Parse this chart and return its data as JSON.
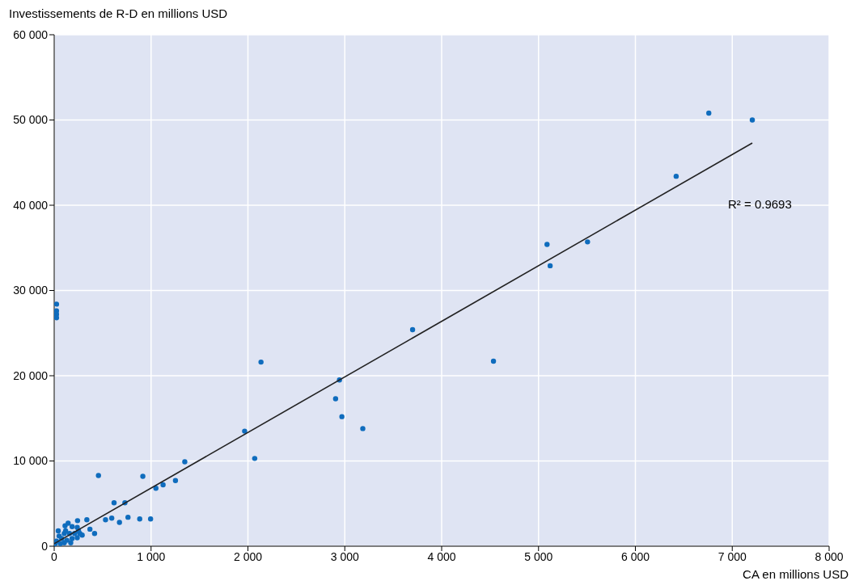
{
  "chart_data": {
    "type": "scatter",
    "ylabel": "Investissements de R-D en millions USD",
    "xlabel": "CA en millions USD",
    "annotations": [
      "R² = 0.9693"
    ],
    "xlim": [
      0,
      8000
    ],
    "ylim": [
      0,
      60000
    ],
    "xticks": [
      0,
      {
        "value": 1000,
        "label": "1 000"
      },
      {
        "value": 2000,
        "label": "2 000"
      },
      {
        "value": 3000,
        "label": "3 000"
      },
      {
        "value": 4000,
        "label": "4 000"
      },
      {
        "value": 5000,
        "label": "5 000"
      },
      {
        "value": 6000,
        "label": "6 000"
      },
      {
        "value": 7000,
        "label": "7 000"
      },
      {
        "value": 8000,
        "label": "8 000"
      }
    ],
    "yticks": [
      0,
      {
        "value": 10000,
        "label": "10 000"
      },
      {
        "value": 20000,
        "label": "20 000"
      },
      {
        "value": 30000,
        "label": "30 000"
      },
      {
        "value": 40000,
        "label": "40 000"
      },
      {
        "value": 50000,
        "label": "50 000"
      },
      {
        "value": 60000,
        "label": "60 000"
      }
    ],
    "grid": true,
    "legend": false,
    "marker": "circle",
    "series": [
      {
        "type": "scatter",
        "color": "#0f6cbd",
        "x": [
          7207,
          6758,
          6421,
          5506,
          5088,
          5120,
          4535,
          3700,
          2945,
          2905,
          2970,
          3186,
          2135,
          1966,
          2070,
          1348,
          457,
          915,
          1252,
          1124,
          1050,
          730,
          618,
          337,
          530,
          594,
          762,
          883,
          995,
          674,
          241,
          369,
          417,
          289,
          24,
          24,
          24,
          24,
          42,
          112,
          144,
          185,
          238,
          265,
          211,
          158,
          104,
          51,
          77,
          131,
          185,
          238,
          24,
          11,
          104,
          171,
          64,
          251,
          118
        ],
        "values": [
          50000,
          50800,
          43400,
          35700,
          35400,
          32900,
          21700,
          25400,
          19500,
          17300,
          15200,
          13800,
          21600,
          13500,
          10300,
          9900,
          8300,
          8200,
          7700,
          7200,
          6800,
          5100,
          5100,
          3100,
          3100,
          3300,
          3400,
          3200,
          3200,
          2800,
          3000,
          2000,
          1500,
          1300,
          28400,
          27600,
          27200,
          26800,
          1800,
          2400,
          2700,
          2300,
          2200,
          1500,
          1500,
          1500,
          1500,
          1200,
          900,
          700,
          900,
          1000,
          600,
          300,
          400,
          400,
          300,
          1800,
          1800
        ]
      },
      {
        "type": "line",
        "color": "#222222",
        "marker": "none",
        "x": [
          0,
          7207
        ],
        "values": [
          300,
          47300
        ]
      }
    ]
  }
}
